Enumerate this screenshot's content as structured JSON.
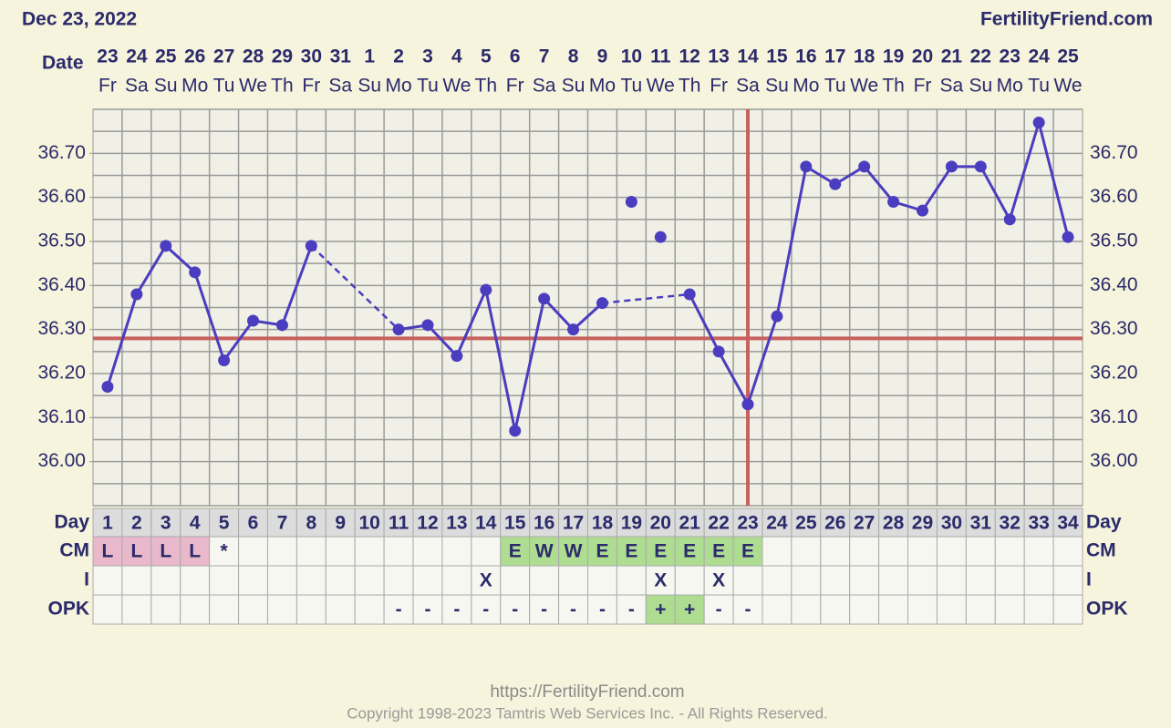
{
  "chart_data": {
    "type": "line",
    "header_date": "Dec 23, 2022",
    "site": "FertilityFriend.com",
    "footer_url": "https://FertilityFriend.com",
    "copyright": "Copyright 1998-2023 Tamtris Web Services Inc. - All Rights Reserved.",
    "date_label": "Date",
    "day_label": "Day",
    "cm_label": "CM",
    "i_label": "I",
    "opk_label": "OPK",
    "dates": [
      23,
      24,
      25,
      26,
      27,
      28,
      29,
      30,
      31,
      1,
      2,
      3,
      4,
      5,
      6,
      7,
      8,
      9,
      10,
      11,
      12,
      13,
      14,
      15,
      16,
      17,
      18,
      19,
      20,
      21,
      22,
      23,
      24,
      25
    ],
    "weekdays": [
      "Fr",
      "Sa",
      "Su",
      "Mo",
      "Tu",
      "We",
      "Th",
      "Fr",
      "Sa",
      "Su",
      "Mo",
      "Tu",
      "We",
      "Th",
      "Fr",
      "Sa",
      "Su",
      "Mo",
      "Tu",
      "We",
      "Th",
      "Fr",
      "Sa",
      "Su",
      "Mo",
      "Tu",
      "We",
      "Th",
      "Fr",
      "Sa",
      "Su",
      "Mo",
      "Tu",
      "We"
    ],
    "days": [
      1,
      2,
      3,
      4,
      5,
      6,
      7,
      8,
      9,
      10,
      11,
      12,
      13,
      14,
      15,
      16,
      17,
      18,
      19,
      20,
      21,
      22,
      23,
      24,
      25,
      26,
      27,
      28,
      29,
      30,
      31,
      32,
      33,
      34
    ],
    "temperature": [
      36.17,
      36.38,
      36.49,
      36.43,
      36.23,
      36.32,
      36.31,
      36.49,
      null,
      null,
      36.3,
      36.31,
      36.24,
      36.39,
      36.07,
      36.37,
      36.3,
      36.36,
      null,
      null,
      36.38,
      36.25,
      36.13,
      36.33,
      36.67,
      36.63,
      36.67,
      36.59,
      36.57,
      36.67,
      36.67,
      36.55,
      36.77,
      36.51
    ],
    "discarded": [
      null,
      null,
      null,
      null,
      null,
      null,
      null,
      null,
      null,
      null,
      null,
      null,
      null,
      null,
      null,
      null,
      null,
      null,
      36.59,
      36.51,
      null,
      null,
      null,
      null,
      null,
      null,
      null,
      null,
      null,
      null,
      null,
      null,
      null,
      null
    ],
    "cm": [
      "L",
      "L",
      "L",
      "L",
      "*",
      null,
      null,
      null,
      null,
      null,
      null,
      null,
      null,
      null,
      "E",
      "W",
      "W",
      "E",
      "E",
      "E",
      "E",
      "E",
      "E",
      null,
      null,
      null,
      null,
      null,
      null,
      null,
      null,
      null,
      null,
      null
    ],
    "intercourse": [
      null,
      null,
      null,
      null,
      null,
      null,
      null,
      null,
      null,
      null,
      null,
      null,
      null,
      "X",
      null,
      null,
      null,
      null,
      null,
      "X",
      null,
      "X",
      null,
      null,
      null,
      null,
      null,
      null,
      null,
      null,
      null,
      null,
      null,
      null
    ],
    "opk": [
      null,
      null,
      null,
      null,
      null,
      null,
      null,
      null,
      null,
      null,
      "-",
      "-",
      "-",
      "-",
      "-",
      "-",
      "-",
      "-",
      "-",
      "+",
      "+",
      "-",
      "-",
      null,
      null,
      null,
      null,
      null,
      null,
      null,
      null,
      null,
      null,
      null
    ],
    "coverline": 36.28,
    "ovulation_day": 23,
    "ylim": [
      35.9,
      36.8
    ],
    "yticks": [
      {
        "value": 36.0,
        "label": "36.00"
      },
      {
        "value": 36.1,
        "label": "36.10"
      },
      {
        "value": 36.2,
        "label": "36.20"
      },
      {
        "value": 36.3,
        "label": "36.30"
      },
      {
        "value": 36.4,
        "label": "36.40"
      },
      {
        "value": 36.5,
        "label": "36.50"
      },
      {
        "value": 36.6,
        "label": "36.60"
      },
      {
        "value": 36.7,
        "label": "36.70"
      }
    ],
    "color": "#4b3dbf",
    "coverline_color": "#c96060",
    "cm_colors": {
      "L": "#e9b8cb",
      "E": "#aedd92",
      "W": "#aedd92"
    },
    "opk_colors": {
      "+": "#aedd92"
    },
    "grid": true
  }
}
